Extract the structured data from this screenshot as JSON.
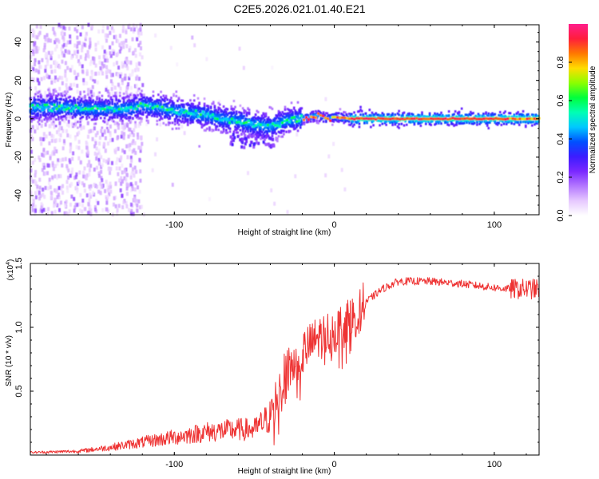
{
  "title": "C2E5.2026.021.01.40.E21",
  "chart_data": [
    {
      "type": "heatmap",
      "name": "spectrogram",
      "xlabel": "Height of straight line (km)",
      "ylabel": "Frequency (Hz)",
      "xlim": [
        -190,
        128
      ],
      "ylim": [
        -50,
        49
      ],
      "x_ticks": [
        -100,
        0,
        100
      ],
      "y_ticks": [
        40,
        20,
        0,
        -20,
        -40
      ],
      "colorbar": {
        "label": "Normalized spectral amplitude",
        "range": [
          0,
          1
        ],
        "ticks": [
          "0.0",
          "0.2",
          "0.4",
          "0.6",
          "0.8"
        ],
        "tick_values": [
          0.0,
          0.2,
          0.4,
          0.6,
          0.8
        ],
        "colors": [
          "#ffffff",
          "#e6c8ff",
          "#b478ff",
          "#7a28ff",
          "#3c1cff",
          "#0050ff",
          "#00c8ff",
          "#00ffb4",
          "#00ff3c",
          "#8cff00",
          "#ffdc00",
          "#ff7800",
          "#ff1e3c",
          "#ff1e8c"
        ]
      },
      "ridge_points": [
        [
          -190,
          6
        ],
        [
          -170,
          6
        ],
        [
          -150,
          5
        ],
        [
          -130,
          5
        ],
        [
          -120,
          7
        ],
        [
          -110,
          6
        ],
        [
          -100,
          4
        ],
        [
          -90,
          3
        ],
        [
          -80,
          2
        ],
        [
          -70,
          0
        ],
        [
          -60,
          -1
        ],
        [
          -50,
          -3
        ],
        [
          -40,
          -4
        ],
        [
          -30,
          -1
        ],
        [
          -20,
          0
        ],
        [
          -15,
          1
        ],
        [
          -10,
          2
        ],
        [
          -5,
          0
        ],
        [
          0,
          1
        ],
        [
          10,
          0
        ],
        [
          20,
          0
        ],
        [
          40,
          0
        ],
        [
          60,
          0
        ],
        [
          80,
          0
        ],
        [
          100,
          0
        ],
        [
          128,
          0
        ]
      ]
    },
    {
      "type": "line",
      "name": "snr",
      "xlabel": "Height of straight line (km)",
      "ylabel": "SNR (10 * v/v)",
      "scale_label": "(x10",
      "scale_exp": "4",
      "scale_close": ")",
      "xlim": [
        -190,
        128
      ],
      "ylim": [
        0,
        1.5
      ],
      "x_ticks": [
        -100,
        0,
        100
      ],
      "y_ticks": [
        0.5,
        1.0,
        1.5
      ],
      "y_tick_labels": [
        "0.5",
        "1.0",
        "1.5"
      ],
      "line_color": "#ee3333",
      "trend_points": [
        [
          -190,
          0.02
        ],
        [
          -160,
          0.03
        ],
        [
          -140,
          0.06
        ],
        [
          -120,
          0.1
        ],
        [
          -100,
          0.14
        ],
        [
          -80,
          0.18
        ],
        [
          -60,
          0.2
        ],
        [
          -50,
          0.2
        ],
        [
          -40,
          0.3
        ],
        [
          -35,
          0.5
        ],
        [
          -30,
          0.65
        ],
        [
          -20,
          0.8
        ],
        [
          -10,
          0.92
        ],
        [
          0,
          0.97
        ],
        [
          10,
          1.05
        ],
        [
          20,
          1.2
        ],
        [
          30,
          1.3
        ],
        [
          40,
          1.36
        ],
        [
          60,
          1.36
        ],
        [
          80,
          1.34
        ],
        [
          100,
          1.31
        ],
        [
          110,
          1.3
        ],
        [
          128,
          1.3
        ]
      ]
    }
  ]
}
